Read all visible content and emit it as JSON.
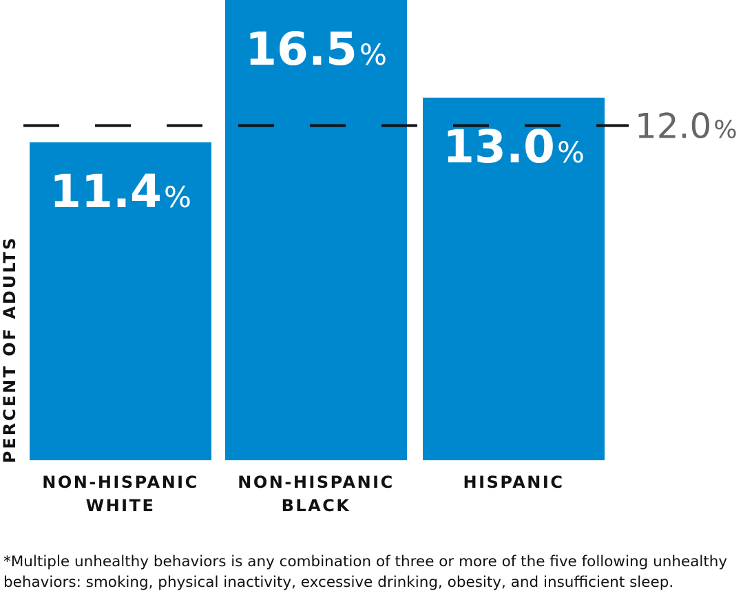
{
  "chart_data": {
    "type": "bar",
    "title": "",
    "xlabel": "",
    "ylabel": "PERCENT OF ADULTS",
    "categories": [
      [
        "NON-HISPANIC",
        "WHITE"
      ],
      [
        "NON-HISPANIC",
        "BLACK"
      ],
      [
        "HISPANIC"
      ]
    ],
    "values": [
      11.4,
      16.5,
      13.0
    ],
    "value_labels": [
      "11.4",
      "16.5",
      "13.0"
    ],
    "percent_sign": "%",
    "reference_line": {
      "value": 12.0,
      "label": "12.0",
      "style": "dashed"
    },
    "ylim": [
      0,
      16.5
    ],
    "grid": false,
    "bar_color": "#0088CE",
    "reference_color": "#111111",
    "reference_label_color": "#666666"
  },
  "footnote": "*Multiple unhealthy behaviors is any combination of three or more of the five following unhealthy behaviors: smoking, physical inactivity, excessive drinking, obesity, and insufficient sleep."
}
